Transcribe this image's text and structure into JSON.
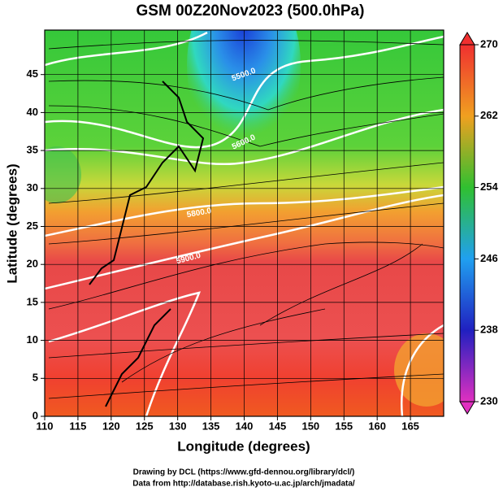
{
  "chart_data": {
    "type": "field",
    "title": "GSM 00Z20Nov2023 (500.0hPa)",
    "x_label": "Longitude (degrees)",
    "y_label": "Latitude  (degrees)",
    "xlim": [
      110,
      170
    ],
    "xticks": [
      110,
      115,
      120,
      125,
      130,
      135,
      140,
      145,
      150,
      155,
      160,
      165
    ],
    "ylim": [
      0,
      50
    ],
    "yticks": [
      0,
      5,
      10,
      15,
      20,
      25,
      30,
      35,
      40,
      45
    ],
    "colorbar": {
      "lim": [
        230,
        270
      ],
      "ticks": [
        230,
        238,
        246,
        254,
        262,
        270
      ]
    },
    "contour_labels": [
      "5500.0",
      "5600.0",
      "5800.0",
      "5900.0"
    ],
    "credits": [
      "Drawing by DCL (https://www.gfd-dennou.org/library/dcl/)",
      "Data from http://database.rish.kyoto-u.ac.jp/arch/jmadata/"
    ]
  }
}
